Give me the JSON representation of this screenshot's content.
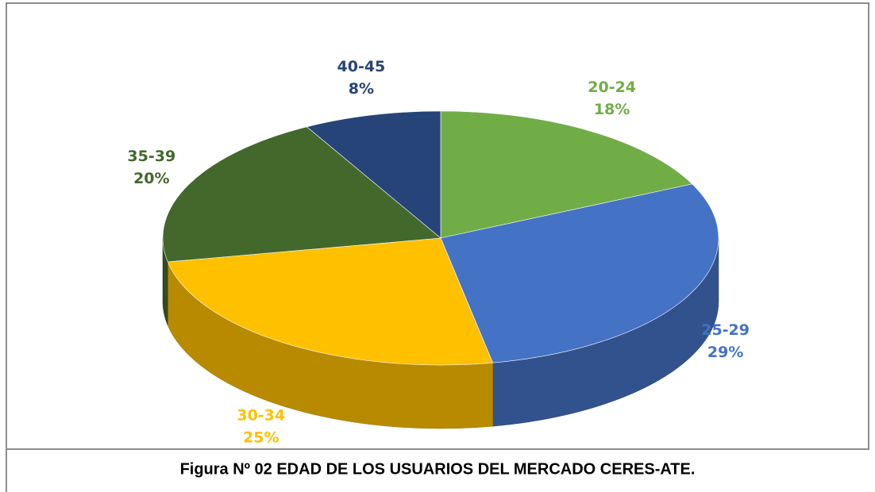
{
  "chart_data": {
    "type": "pie",
    "title": "Figura Nº 02 EDAD DE LOS USUARIOS DEL MERCADO CERES-ATE.",
    "categories": [
      "20-24",
      "25-29",
      "30-34",
      "35-39",
      "40-45"
    ],
    "values": [
      18,
      29,
      25,
      20,
      8
    ],
    "value_labels": [
      "18%",
      "29%",
      "25%",
      "20%",
      "8%"
    ],
    "colors": [
      "#70ad47",
      "#4472c4",
      "#ffc000",
      "#43682b",
      "#264478"
    ]
  }
}
